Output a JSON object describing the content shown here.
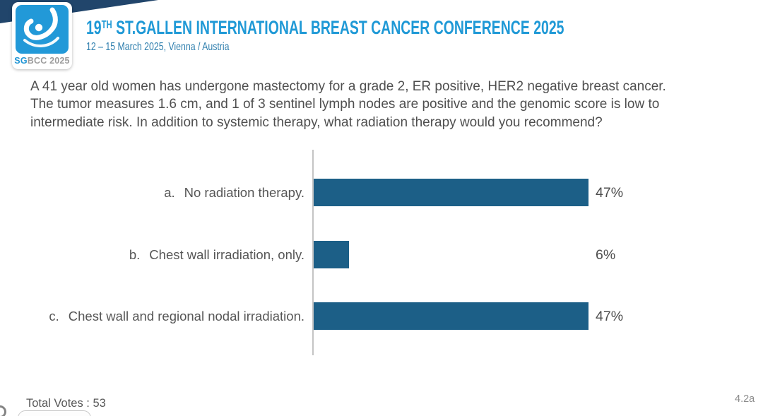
{
  "header": {
    "logo": {
      "sg": "SG",
      "bcc_year": "BCC 2025"
    },
    "title_number": "19",
    "title_sup": "TH",
    "title_rest": " ST.GALLEN INTERNATIONAL BREAST CANCER CONFERENCE 2025",
    "subtitle": "12 – 15 March 2025, Vienna / Austria"
  },
  "question": "A 41 year old women has undergone mastectomy for a grade 2, ER positive, HER2 negative breast cancer. The tumor measures 1.6 cm, and 1 of 3 sentinel lymph nodes are positive and the genomic score is low to intermediate risk. In addition to systemic therapy, what radiation therapy would you recommend?",
  "chart_data": {
    "type": "bar",
    "orientation": "horizontal",
    "title": "",
    "xlabel": "",
    "ylabel": "",
    "xlim": [
      0,
      50
    ],
    "grid": false,
    "bar_color": "#1c5f87",
    "categories": [
      "a. No radiation therapy.",
      "b. Chest wall irradiation, only.",
      "c. Chest wall and regional nodal irradiation."
    ],
    "values": [
      47,
      6,
      47
    ],
    "value_labels": [
      "47%",
      "6%",
      "47%"
    ],
    "rows": [
      {
        "letter": "a.",
        "label": "No radiation therapy.",
        "pct": "47%",
        "value": 47
      },
      {
        "letter": "b.",
        "label": "Chest wall irradiation, only.",
        "pct": "6%",
        "value": 6
      },
      {
        "letter": "c.",
        "label": "Chest wall and regional nodal irradiation.",
        "pct": "47%",
        "value": 47
      }
    ]
  },
  "footer": {
    "total_votes": "Total Votes : 53",
    "slide_code": "4.2a"
  },
  "colors": {
    "accent_navy": "#21456b",
    "brand_blue": "#2196d5",
    "subtitle_blue": "#2f7fae",
    "bar_fill": "#1c5f87",
    "text_gray": "#4f4f4f",
    "axis_gray": "#c4c4c4"
  }
}
